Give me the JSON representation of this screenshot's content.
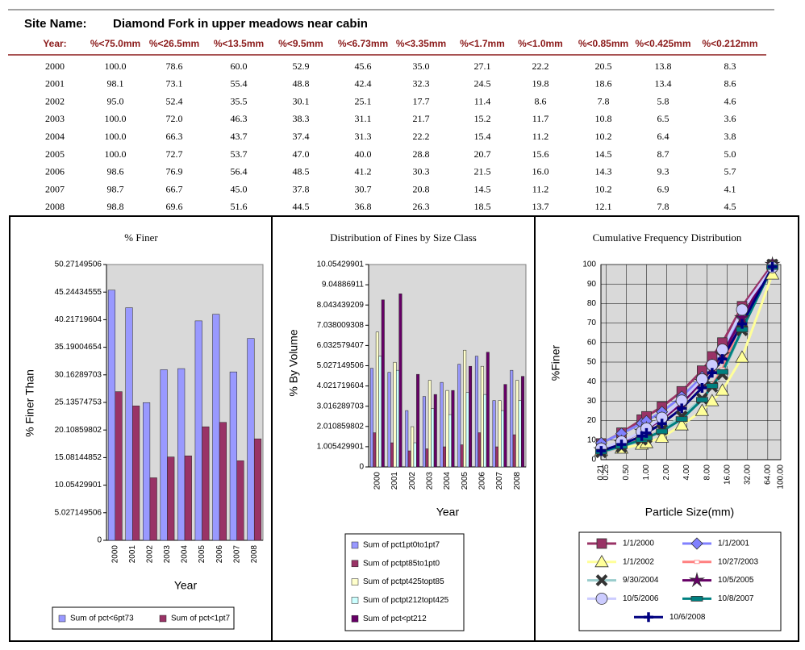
{
  "header": {
    "label": "Site Name:",
    "value": "Diamond Fork in upper meadows near cabin"
  },
  "table": {
    "columns": [
      "Year:",
      "%<75.0mm",
      "%<26.5mm",
      "%<13.5mm",
      "%<9.5mm",
      "%<6.73mm",
      "%<3.35mm",
      "%<1.7mm",
      "%<1.0mm",
      "%<0.85mm",
      "%<0.425mm",
      "%<0.212mm"
    ],
    "rows": [
      [
        "2000",
        "100.0",
        "78.6",
        "60.0",
        "52.9",
        "45.6",
        "35.0",
        "27.1",
        "22.2",
        "20.5",
        "13.8",
        "8.3"
      ],
      [
        "2001",
        "98.1",
        "73.1",
        "55.4",
        "48.8",
        "42.4",
        "32.3",
        "24.5",
        "19.8",
        "18.6",
        "13.4",
        "8.6"
      ],
      [
        "2002",
        "95.0",
        "52.4",
        "35.5",
        "30.1",
        "25.1",
        "17.7",
        "11.4",
        "8.6",
        "7.8",
        "5.8",
        "4.6"
      ],
      [
        "2003",
        "100.0",
        "72.0",
        "46.3",
        "38.3",
        "31.1",
        "21.7",
        "15.2",
        "11.7",
        "10.8",
        "6.5",
        "3.6"
      ],
      [
        "2004",
        "100.0",
        "66.3",
        "43.7",
        "37.4",
        "31.3",
        "22.2",
        "15.4",
        "11.2",
        "10.2",
        "6.4",
        "3.8"
      ],
      [
        "2005",
        "100.0",
        "72.7",
        "53.7",
        "47.0",
        "40.0",
        "28.8",
        "20.7",
        "15.6",
        "14.5",
        "8.7",
        "5.0"
      ],
      [
        "2006",
        "98.6",
        "76.9",
        "56.4",
        "48.5",
        "41.2",
        "30.3",
        "21.5",
        "16.0",
        "14.3",
        "9.3",
        "5.7"
      ],
      [
        "2007",
        "98.7",
        "66.7",
        "45.0",
        "37.8",
        "30.7",
        "20.8",
        "14.5",
        "11.2",
        "10.2",
        "6.9",
        "4.1"
      ],
      [
        "2008",
        "98.8",
        "69.6",
        "51.6",
        "44.5",
        "36.8",
        "26.3",
        "18.5",
        "13.7",
        "12.1",
        "7.8",
        "4.5"
      ]
    ]
  },
  "chart_data": [
    {
      "type": "bar",
      "title": "% Finer",
      "y_label": "% Finer Than",
      "x_label": "Year",
      "grid": false,
      "legend": "bottom",
      "categories": [
        "2000",
        "2001",
        "2002",
        "2003",
        "2004",
        "2005",
        "2006",
        "2007",
        "2008"
      ],
      "series": [
        {
          "name": "Sum of pct<6pt73",
          "color": "#9999ff",
          "values": [
            45.6,
            42.4,
            25.1,
            31.1,
            31.3,
            40.0,
            41.2,
            30.7,
            36.8
          ]
        },
        {
          "name": "Sum of pct<1pt7",
          "color": "#993366",
          "values": [
            27.1,
            24.5,
            11.4,
            15.2,
            15.4,
            20.7,
            21.5,
            14.5,
            18.5
          ]
        }
      ],
      "ylim": [
        0,
        50.27149506
      ],
      "yticks": [
        0,
        5.027149506,
        10.05429901,
        15.08144852,
        20.10859802,
        25.13574753,
        30.16289703,
        35.19004654,
        40.21719604,
        45.24434555,
        50.27149506
      ]
    },
    {
      "type": "bar",
      "title": "Distribution of Fines by Size Class",
      "y_label": "% By Volume",
      "x_label": "Year",
      "grid": false,
      "legend": "bottom",
      "categories": [
        "2000",
        "2001",
        "2002",
        "2003",
        "2004",
        "2005",
        "2006",
        "2007",
        "2008"
      ],
      "series": [
        {
          "name": "Sum of pct1pt0to1pt7",
          "color": "#9999ff",
          "values": [
            4.9,
            4.7,
            2.8,
            3.5,
            4.2,
            5.1,
            5.5,
            3.3,
            4.8
          ]
        },
        {
          "name": "Sum of pctpt85to1pt0",
          "color": "#993366",
          "values": [
            1.7,
            1.2,
            0.8,
            0.9,
            1.0,
            1.1,
            1.7,
            1.0,
            1.6
          ]
        },
        {
          "name": "Sum of pctpt425topt85",
          "color": "#ffffcc",
          "values": [
            6.7,
            5.2,
            2.0,
            4.3,
            3.8,
            5.8,
            5.0,
            3.3,
            4.3
          ]
        },
        {
          "name": "Sum of pctpt212topt425",
          "color": "#ccffff",
          "values": [
            5.5,
            4.8,
            1.2,
            2.9,
            2.6,
            3.7,
            3.6,
            2.8,
            3.3
          ]
        },
        {
          "name": "Sum of pct<pt212",
          "color": "#660066",
          "values": [
            8.3,
            8.6,
            4.6,
            3.6,
            3.8,
            5.0,
            5.7,
            4.1,
            4.5
          ]
        }
      ],
      "ylim": [
        0,
        10.05429901
      ],
      "yticks": [
        0,
        1.005429901,
        2.010859802,
        3.016289703,
        4.021719604,
        5.027149506,
        6.032579407,
        7.038009308,
        8.043439209,
        9.04886911,
        10.05429901
      ]
    },
    {
      "type": "line",
      "title": "Cumulative Frequency Distribution",
      "y_label": "%Finer",
      "x_label": "Particle Size(mm)",
      "grid": true,
      "legend": "bottom",
      "xscale": "log",
      "x": [
        0.212,
        0.425,
        0.85,
        1.0,
        1.7,
        3.35,
        6.73,
        9.5,
        13.5,
        26.5,
        75
      ],
      "series": [
        {
          "name": "1/1/2000",
          "color": "#993366",
          "marker": "square",
          "values": [
            8.3,
            13.8,
            20.5,
            22.2,
            27.1,
            35.0,
            45.6,
            52.9,
            60.0,
            78.6,
            100.0
          ]
        },
        {
          "name": "1/1/2001",
          "color": "#8080ff",
          "marker": "diamond",
          "values": [
            8.6,
            13.4,
            18.6,
            19.8,
            24.5,
            32.3,
            42.4,
            48.8,
            55.4,
            73.1,
            98.1
          ]
        },
        {
          "name": "1/1/2002",
          "color": "#ffff99",
          "marker": "triangle",
          "values": [
            4.6,
            5.8,
            7.8,
            8.6,
            11.4,
            17.7,
            25.1,
            30.1,
            35.5,
            52.4,
            95.0
          ]
        },
        {
          "name": "10/27/2003",
          "color": "#ff8080",
          "marker": "small-square",
          "values": [
            3.6,
            6.5,
            10.8,
            11.7,
            15.2,
            21.7,
            31.1,
            38.3,
            46.3,
            72.0,
            100.0
          ]
        },
        {
          "name": "9/30/2004",
          "color": "#99cccc",
          "marker": "x",
          "values": [
            3.8,
            6.4,
            10.2,
            11.2,
            15.4,
            22.2,
            31.3,
            37.4,
            43.7,
            66.3,
            100.0
          ]
        },
        {
          "name": "10/5/2005",
          "color": "#660066",
          "marker": "star",
          "values": [
            5.0,
            8.7,
            14.5,
            15.6,
            20.7,
            28.8,
            40.0,
            47.0,
            53.7,
            72.7,
            100.0
          ]
        },
        {
          "name": "10/5/2006",
          "color": "#ccccff",
          "marker": "circle",
          "values": [
            5.7,
            9.3,
            14.3,
            16.0,
            21.5,
            30.3,
            41.2,
            48.5,
            56.4,
            76.9,
            98.6
          ]
        },
        {
          "name": "10/8/2007",
          "color": "#008080",
          "marker": "bar",
          "values": [
            4.1,
            6.9,
            10.2,
            11.2,
            14.5,
            20.8,
            30.7,
            37.8,
            45.0,
            66.7,
            98.7
          ]
        },
        {
          "name": "10/6/2008",
          "color": "#000080",
          "marker": "plus",
          "values": [
            4.5,
            7.8,
            12.1,
            13.7,
            18.5,
            26.3,
            36.8,
            44.5,
            51.6,
            69.6,
            98.8
          ]
        }
      ],
      "xlim": [
        0.21,
        100
      ],
      "xticks": [
        {
          "value": 0.21,
          "label": "0.21"
        },
        {
          "value": 0.25,
          "label": "0.25"
        },
        {
          "value": 0.5,
          "label": "0.50"
        },
        {
          "value": 1,
          "label": "1.00"
        },
        {
          "value": 2,
          "label": "2.00"
        },
        {
          "value": 4,
          "label": "4.00"
        },
        {
          "value": 8,
          "label": "8.00"
        },
        {
          "value": 16,
          "label": "16.00"
        },
        {
          "value": 32,
          "label": "32.00"
        },
        {
          "value": 64,
          "label": "64.00"
        },
        {
          "value": 100,
          "label": "100.00"
        }
      ],
      "ylim": [
        0,
        100
      ],
      "yticks": [
        0,
        10,
        20,
        30,
        40,
        50,
        60,
        70,
        80,
        90,
        100
      ]
    }
  ]
}
